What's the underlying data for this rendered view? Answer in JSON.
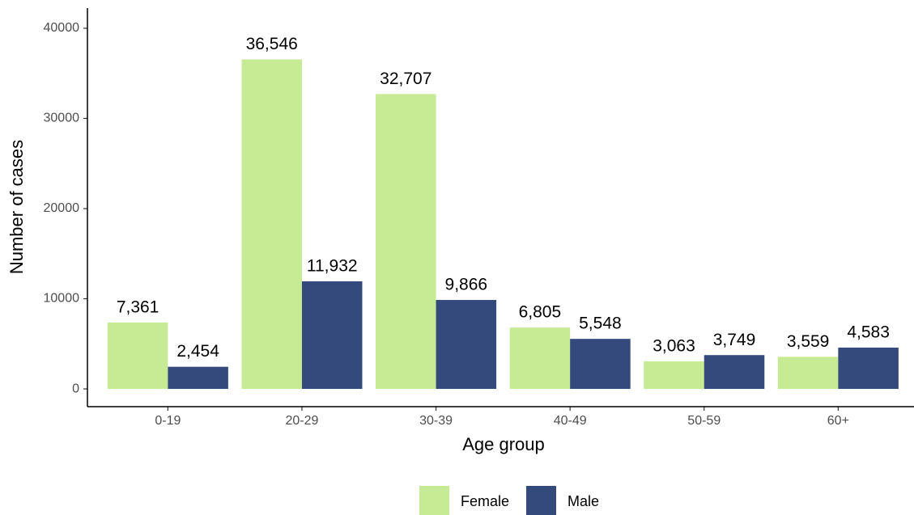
{
  "chart_data": {
    "type": "bar",
    "xlabel": "Age group",
    "ylabel": "Number of cases",
    "categories": [
      "0-19",
      "20-29",
      "30-39",
      "40-49",
      "50-59",
      "60+"
    ],
    "series": [
      {
        "name": "Female",
        "color": "#c7ea95",
        "values": [
          7361,
          36546,
          32707,
          6805,
          3063,
          3559
        ],
        "value_labels": [
          "7,361",
          "36,546",
          "32,707",
          "6,805",
          "3,063",
          "3,559"
        ]
      },
      {
        "name": "Male",
        "color": "#344a7c",
        "values": [
          2454,
          11932,
          9866,
          5548,
          3749,
          4583
        ],
        "value_labels": [
          "2,454",
          "11,932",
          "9,866",
          "5,548",
          "3,749",
          "4,583"
        ]
      }
    ],
    "ylim": [
      -1970,
      42240
    ],
    "yticks": [
      0,
      10000,
      20000,
      30000,
      40000
    ],
    "grid": false,
    "legend": "bottom"
  }
}
